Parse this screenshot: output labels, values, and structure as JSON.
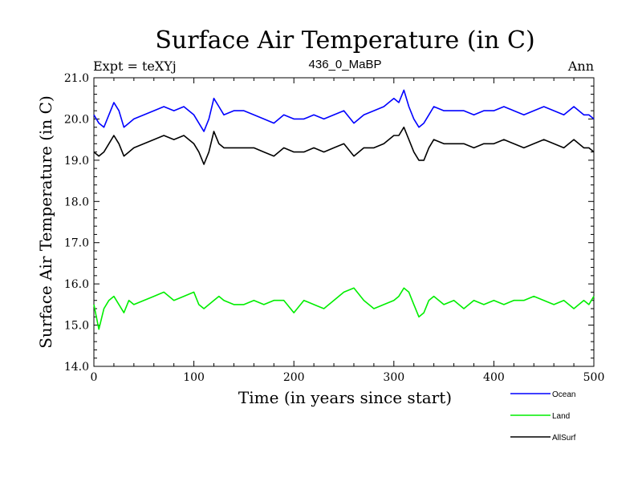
{
  "chart_data": {
    "type": "line",
    "title": "Surface Air Temperature (in C)",
    "subtitle_left": "Expt = teXYj",
    "subtitle_center": "436_0_MaBP",
    "subtitle_right": "Ann",
    "xlabel": "Time (in years since start)",
    "ylabel": "Surface Air Temperature (in C)",
    "xlim": [
      0,
      500
    ],
    "ylim": [
      14.0,
      21.0
    ],
    "xticks": [
      0,
      100,
      200,
      300,
      400,
      500
    ],
    "xtick_labels": [
      "0",
      "100",
      "200",
      "300",
      "400",
      "500"
    ],
    "yticks": [
      14.0,
      15.0,
      16.0,
      17.0,
      18.0,
      19.0,
      20.0,
      21.0
    ],
    "ytick_labels": [
      "14.0",
      "15.0",
      "16.0",
      "17.0",
      "18.0",
      "19.0",
      "20.0",
      "21.0"
    ],
    "grid": false,
    "legend_placement": "bottom-right below plot",
    "series": [
      {
        "name": "Ocean",
        "color": "#0000ff",
        "x": [
          0,
          5,
          10,
          15,
          20,
          25,
          30,
          35,
          40,
          50,
          60,
          70,
          80,
          90,
          100,
          105,
          110,
          115,
          120,
          125,
          130,
          140,
          150,
          160,
          170,
          180,
          190,
          200,
          210,
          220,
          230,
          240,
          250,
          260,
          270,
          280,
          290,
          300,
          305,
          310,
          315,
          320,
          325,
          330,
          335,
          340,
          350,
          360,
          370,
          380,
          390,
          400,
          410,
          420,
          430,
          440,
          450,
          460,
          470,
          480,
          490,
          495,
          500
        ],
        "values": [
          20.1,
          19.9,
          19.8,
          20.1,
          20.4,
          20.2,
          19.8,
          19.9,
          20.0,
          20.1,
          20.2,
          20.3,
          20.2,
          20.3,
          20.1,
          19.9,
          19.7,
          20.0,
          20.5,
          20.3,
          20.1,
          20.2,
          20.2,
          20.1,
          20.0,
          19.9,
          20.1,
          20.0,
          20.0,
          20.1,
          20.0,
          20.1,
          20.2,
          19.9,
          20.1,
          20.2,
          20.3,
          20.5,
          20.4,
          20.7,
          20.3,
          20.0,
          19.8,
          19.9,
          20.1,
          20.3,
          20.2,
          20.2,
          20.2,
          20.1,
          20.2,
          20.2,
          20.3,
          20.2,
          20.1,
          20.2,
          20.3,
          20.2,
          20.1,
          20.3,
          20.1,
          20.1,
          20.0
        ]
      },
      {
        "name": "Land",
        "color": "#00ee00",
        "x": [
          0,
          5,
          10,
          15,
          20,
          25,
          30,
          35,
          40,
          50,
          60,
          70,
          80,
          90,
          100,
          105,
          110,
          115,
          120,
          125,
          130,
          140,
          150,
          160,
          170,
          180,
          190,
          200,
          210,
          220,
          230,
          240,
          250,
          260,
          270,
          280,
          290,
          300,
          305,
          310,
          315,
          320,
          325,
          330,
          335,
          340,
          350,
          360,
          370,
          380,
          390,
          400,
          410,
          420,
          430,
          440,
          450,
          460,
          470,
          480,
          490,
          495,
          500
        ],
        "values": [
          15.5,
          14.9,
          15.4,
          15.6,
          15.7,
          15.5,
          15.3,
          15.6,
          15.5,
          15.6,
          15.7,
          15.8,
          15.6,
          15.7,
          15.8,
          15.5,
          15.4,
          15.5,
          15.6,
          15.7,
          15.6,
          15.5,
          15.5,
          15.6,
          15.5,
          15.6,
          15.6,
          15.3,
          15.6,
          15.5,
          15.4,
          15.6,
          15.8,
          15.9,
          15.6,
          15.4,
          15.5,
          15.6,
          15.7,
          15.9,
          15.8,
          15.5,
          15.2,
          15.3,
          15.6,
          15.7,
          15.5,
          15.6,
          15.4,
          15.6,
          15.5,
          15.6,
          15.5,
          15.6,
          15.6,
          15.7,
          15.6,
          15.5,
          15.6,
          15.4,
          15.6,
          15.5,
          15.7
        ]
      },
      {
        "name": "AllSurf",
        "color": "#000000",
        "x": [
          0,
          5,
          10,
          15,
          20,
          25,
          30,
          35,
          40,
          50,
          60,
          70,
          80,
          90,
          100,
          105,
          110,
          115,
          120,
          125,
          130,
          140,
          150,
          160,
          170,
          180,
          190,
          200,
          210,
          220,
          230,
          240,
          250,
          260,
          270,
          280,
          290,
          300,
          305,
          310,
          315,
          320,
          325,
          330,
          335,
          340,
          350,
          360,
          370,
          380,
          390,
          400,
          410,
          420,
          430,
          440,
          450,
          460,
          470,
          480,
          490,
          495,
          500
        ],
        "values": [
          19.2,
          19.1,
          19.2,
          19.4,
          19.6,
          19.4,
          19.1,
          19.2,
          19.3,
          19.4,
          19.5,
          19.6,
          19.5,
          19.6,
          19.4,
          19.2,
          18.9,
          19.2,
          19.7,
          19.4,
          19.3,
          19.3,
          19.3,
          19.3,
          19.2,
          19.1,
          19.3,
          19.2,
          19.2,
          19.3,
          19.2,
          19.3,
          19.4,
          19.1,
          19.3,
          19.3,
          19.4,
          19.6,
          19.6,
          19.8,
          19.5,
          19.2,
          19.0,
          19.0,
          19.3,
          19.5,
          19.4,
          19.4,
          19.4,
          19.3,
          19.4,
          19.4,
          19.5,
          19.4,
          19.3,
          19.4,
          19.5,
          19.4,
          19.3,
          19.5,
          19.3,
          19.3,
          19.2
        ]
      }
    ]
  }
}
